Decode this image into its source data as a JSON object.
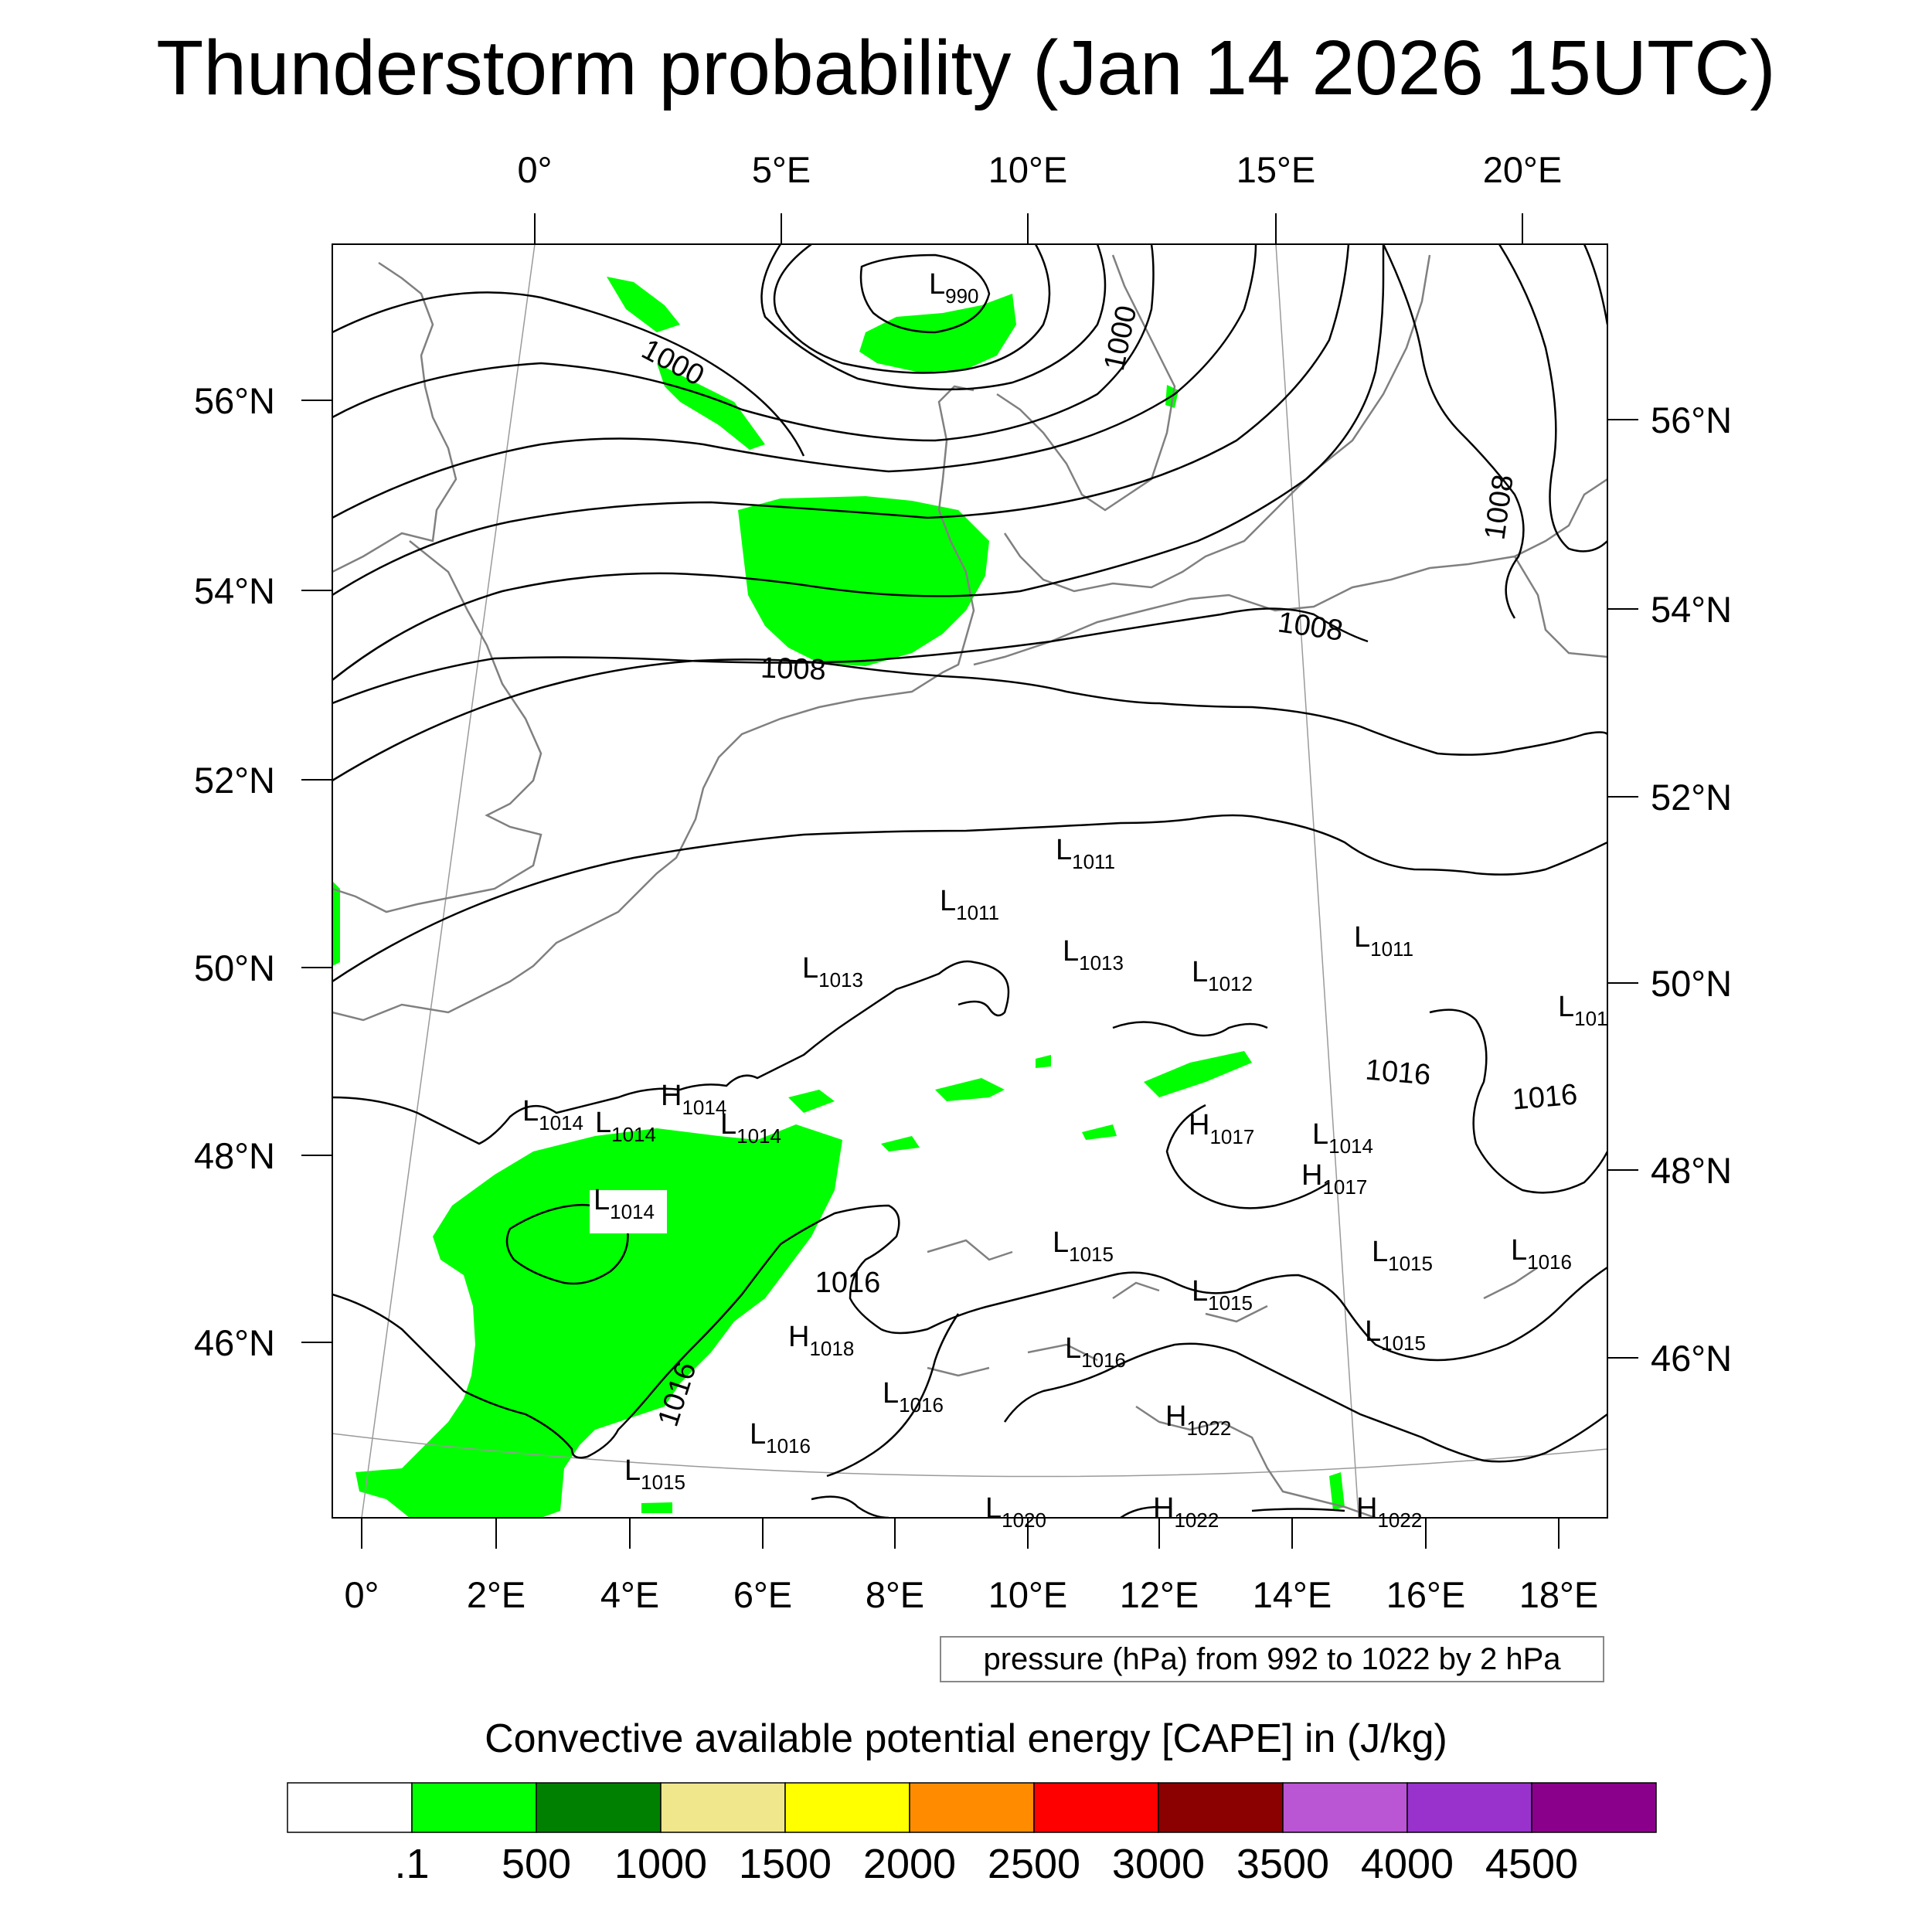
{
  "title": "Thunderstorm probability (Jan 14 2026 15UTC)",
  "map": {
    "top_lon_labels": [
      "0°",
      "5°E",
      "10°E",
      "15°E",
      "20°E"
    ],
    "bottom_lon_labels": [
      "0°",
      "2°E",
      "4°E",
      "6°E",
      "8°E",
      "10°E",
      "12°E",
      "14°E",
      "16°E",
      "18°E"
    ],
    "left_lat_labels": [
      "56°N",
      "54°N",
      "52°N",
      "50°N",
      "48°N",
      "46°N"
    ],
    "right_lat_labels": [
      "56°N",
      "54°N",
      "52°N",
      "50°N",
      "48°N",
      "46°N"
    ],
    "contour_labels": [
      "1000",
      "1000",
      "1008",
      "1008",
      "1008",
      "1016",
      "1016",
      "1016",
      "1016",
      "1016"
    ],
    "pressure_centers": [
      {
        "kind": "L",
        "value": "990"
      },
      {
        "kind": "L",
        "value": "1011"
      },
      {
        "kind": "L",
        "value": "1011"
      },
      {
        "kind": "L",
        "value": "1011"
      },
      {
        "kind": "L",
        "value": "1013"
      },
      {
        "kind": "L",
        "value": "1013"
      },
      {
        "kind": "L",
        "value": "1012"
      },
      {
        "kind": "L",
        "value": "101"
      },
      {
        "kind": "L",
        "value": "1014"
      },
      {
        "kind": "L",
        "value": "1014"
      },
      {
        "kind": "H",
        "value": "1014"
      },
      {
        "kind": "L",
        "value": "1014"
      },
      {
        "kind": "L",
        "value": "1014"
      },
      {
        "kind": "H",
        "value": "1017"
      },
      {
        "kind": "L",
        "value": "1014"
      },
      {
        "kind": "H",
        "value": "1017"
      },
      {
        "kind": "L",
        "value": "1015"
      },
      {
        "kind": "L",
        "value": "1015"
      },
      {
        "kind": "L",
        "value": "1016"
      },
      {
        "kind": "L",
        "value": "1015"
      },
      {
        "kind": "L",
        "value": "1015"
      },
      {
        "kind": "H",
        "value": "1018"
      },
      {
        "kind": "L",
        "value": "1016"
      },
      {
        "kind": "L",
        "value": "1016"
      },
      {
        "kind": "L",
        "value": "1016"
      },
      {
        "kind": "H",
        "value": "1022"
      },
      {
        "kind": "L",
        "value": "1015"
      },
      {
        "kind": "L",
        "value": "1020"
      },
      {
        "kind": "H",
        "value": "1022"
      },
      {
        "kind": "H",
        "value": "1022"
      }
    ]
  },
  "info_text": "pressure (hPa) from 992 to 1022 by 2 hPa",
  "colorbar": {
    "title": "Convective available potential energy [CAPE] in (J/kg)",
    "labels": [
      ".1",
      "500",
      "1000",
      "1500",
      "2000",
      "2500",
      "3000",
      "3500",
      "4000",
      "4500"
    ],
    "colors": [
      "#ffffff",
      "#00ff00",
      "#008000",
      "#f0e68c",
      "#ffff00",
      "#ff8c00",
      "#ff0000",
      "#8b0000",
      "#ba55d3",
      "#9932cc",
      "#8b008b"
    ]
  }
}
